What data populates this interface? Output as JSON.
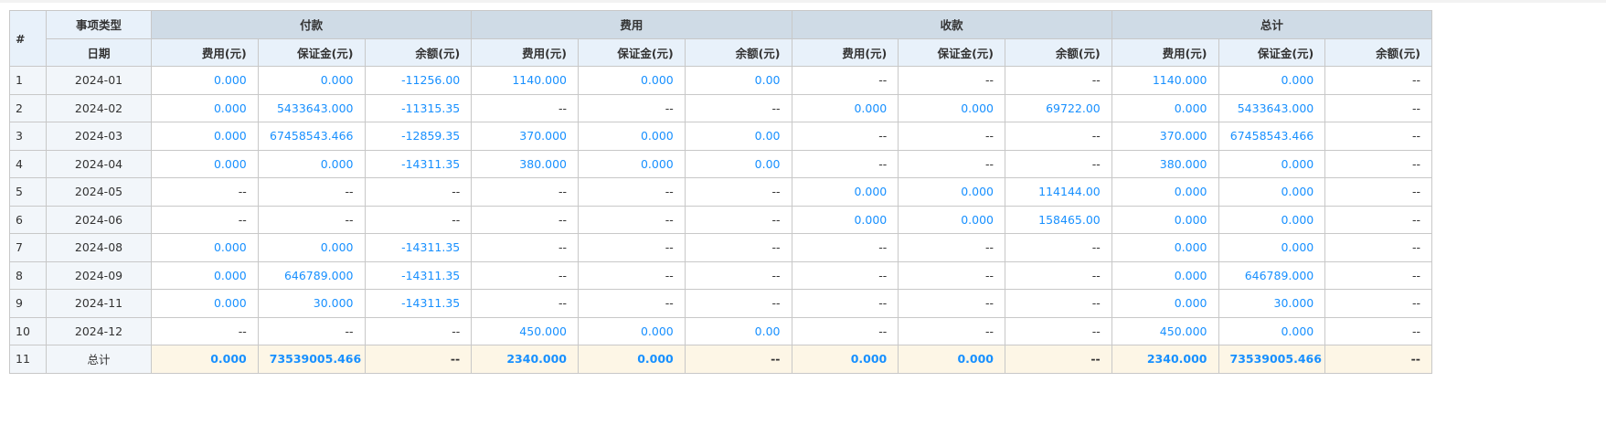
{
  "header": {
    "hash": "#",
    "type": "事项类型",
    "date": "日期",
    "groups": [
      "付款",
      "费用",
      "收款",
      "总计"
    ],
    "subs": [
      [
        "费用(元)",
        "保证金(元)",
        "余额(元)"
      ],
      [
        "费用(元)",
        "保证金(元)",
        "余额(元)"
      ],
      [
        "费用(元)",
        "保证金(元)",
        "余额(元)"
      ],
      [
        "费用(元)",
        "保证金(元)",
        "余额(元)"
      ]
    ]
  },
  "colors": {
    "value": "#1890ff",
    "group_header": "#cfdbe6",
    "sub_header": "#e8f1fa",
    "total_row": "#fdf6e6"
  },
  "rows": [
    {
      "n": "1",
      "d": "2024-01",
      "v": [
        "0.000",
        "0.000",
        "-11256.00",
        "1140.000",
        "0.000",
        "0.00",
        "--",
        "--",
        "--",
        "1140.000",
        "0.000",
        "--"
      ]
    },
    {
      "n": "2",
      "d": "2024-02",
      "v": [
        "0.000",
        "5433643.000",
        "-11315.35",
        "--",
        "--",
        "--",
        "0.000",
        "0.000",
        "69722.00",
        "0.000",
        "5433643.000",
        "--"
      ]
    },
    {
      "n": "3",
      "d": "2024-03",
      "v": [
        "0.000",
        "67458543.466",
        "-12859.35",
        "370.000",
        "0.000",
        "0.00",
        "--",
        "--",
        "--",
        "370.000",
        "67458543.466",
        "--"
      ]
    },
    {
      "n": "4",
      "d": "2024-04",
      "v": [
        "0.000",
        "0.000",
        "-14311.35",
        "380.000",
        "0.000",
        "0.00",
        "--",
        "--",
        "--",
        "380.000",
        "0.000",
        "--"
      ]
    },
    {
      "n": "5",
      "d": "2024-05",
      "v": [
        "--",
        "--",
        "--",
        "--",
        "--",
        "--",
        "0.000",
        "0.000",
        "114144.00",
        "0.000",
        "0.000",
        "--"
      ]
    },
    {
      "n": "6",
      "d": "2024-06",
      "v": [
        "--",
        "--",
        "--",
        "--",
        "--",
        "--",
        "0.000",
        "0.000",
        "158465.00",
        "0.000",
        "0.000",
        "--"
      ]
    },
    {
      "n": "7",
      "d": "2024-08",
      "v": [
        "0.000",
        "0.000",
        "-14311.35",
        "--",
        "--",
        "--",
        "--",
        "--",
        "--",
        "0.000",
        "0.000",
        "--"
      ]
    },
    {
      "n": "8",
      "d": "2024-09",
      "v": [
        "0.000",
        "646789.000",
        "-14311.35",
        "--",
        "--",
        "--",
        "--",
        "--",
        "--",
        "0.000",
        "646789.000",
        "--"
      ]
    },
    {
      "n": "9",
      "d": "2024-11",
      "v": [
        "0.000",
        "30.000",
        "-14311.35",
        "--",
        "--",
        "--",
        "--",
        "--",
        "--",
        "0.000",
        "30.000",
        "--"
      ]
    },
    {
      "n": "10",
      "d": "2024-12",
      "v": [
        "--",
        "--",
        "--",
        "450.000",
        "0.000",
        "0.00",
        "--",
        "--",
        "--",
        "450.000",
        "0.000",
        "--"
      ]
    }
  ],
  "total": {
    "n": "11",
    "d": "总计",
    "v": [
      "0.000",
      "73539005.466",
      "--",
      "2340.000",
      "0.000",
      "--",
      "0.000",
      "0.000",
      "--",
      "2340.000",
      "73539005.466",
      "--"
    ]
  }
}
